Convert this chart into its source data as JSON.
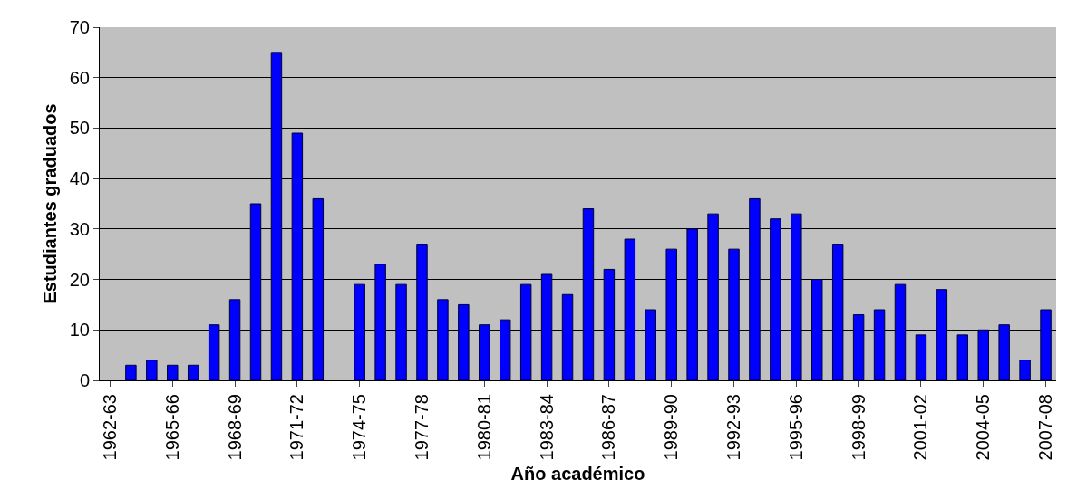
{
  "chart_data": {
    "type": "bar",
    "xlabel": "Año académico",
    "ylabel": "Estudiantes graduados",
    "categories": [
      "1962-63",
      null,
      null,
      "1965-66",
      null,
      null,
      "1968-69",
      null,
      null,
      "1971-72",
      null,
      null,
      "1974-75",
      null,
      null,
      "1977-78",
      null,
      null,
      "1980-81",
      null,
      null,
      "1983-84",
      null,
      null,
      "1986-87",
      null,
      null,
      "1989-90",
      null,
      null,
      "1992-93",
      null,
      null,
      "1995-96",
      null,
      null,
      "1998-99",
      null,
      null,
      "2001-02",
      null,
      null,
      "2004-05",
      null,
      null,
      "2007-08"
    ],
    "values": [
      0,
      3,
      4,
      3,
      3,
      11,
      16,
      35,
      65,
      49,
      36,
      0,
      19,
      23,
      19,
      27,
      16,
      15,
      11,
      12,
      19,
      21,
      17,
      34,
      22,
      28,
      14,
      26,
      30,
      33,
      26,
      36,
      32,
      33,
      20,
      27,
      13,
      14,
      19,
      9,
      18,
      9,
      10,
      11,
      4,
      14
    ],
    "color": "#0000ff",
    "ylim": [
      0,
      70
    ],
    "yticks": [
      0,
      10,
      20,
      30,
      40,
      50,
      60,
      70
    ],
    "grid": "y"
  }
}
